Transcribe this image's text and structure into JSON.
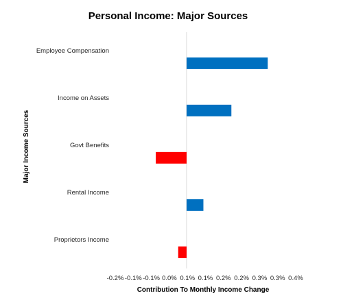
{
  "chart_data": {
    "type": "bar",
    "orientation": "horizontal",
    "title": "Personal Income: Major Sources",
    "xlabel": "Contribution To Monthly Income Change",
    "ylabel": "Major Income Sources",
    "categories": [
      "Employee Compensation",
      "Income on Assets",
      "Govt Benefits",
      "Rental Income",
      "Proprietors Income"
    ],
    "values": [
      0.29,
      0.16,
      -0.11,
      0.06,
      -0.03
    ],
    "x_ticks": [
      "-0.2%",
      "-0.1%",
      "-0.1%",
      "0.0%",
      "0.1%",
      "0.1%",
      "0.2%",
      "0.2%",
      "0.3%",
      "0.3%",
      "0.4%"
    ],
    "xlim": [
      -0.25,
      0.375
    ],
    "grid": false,
    "legend": "none",
    "colors": {
      "positive": "#0070C0",
      "negative": "#FF0000",
      "zero_line": "#D9D9D9"
    }
  }
}
